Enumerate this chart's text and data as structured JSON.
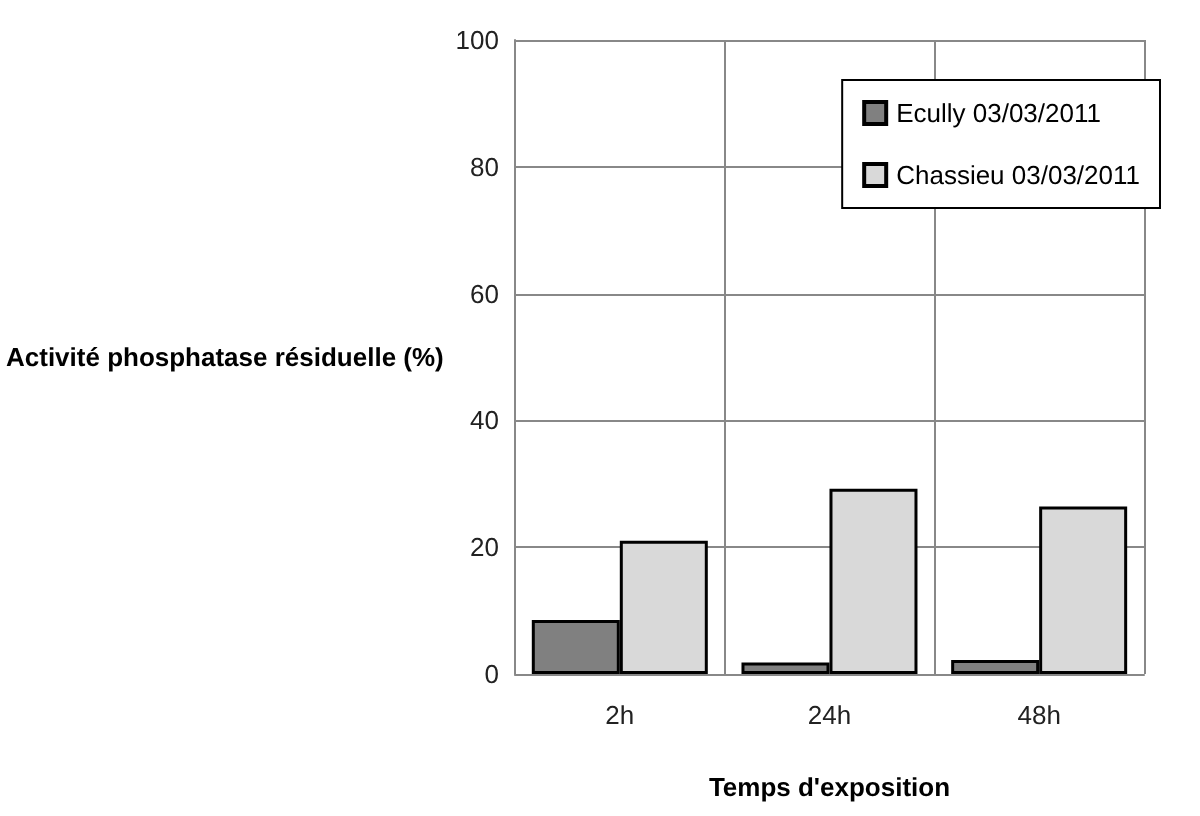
{
  "chart_data": {
    "type": "bar",
    "xlabel": "Temps d'exposition",
    "ylabel": "Activité phosphatase résiduelle (%)",
    "categories": [
      "2h",
      "24h",
      "48h"
    ],
    "series": [
      {
        "name": "Ecully 03/03/2011",
        "color": "#808080",
        "values": [
          8.5,
          1.8,
          2.2
        ]
      },
      {
        "name": "Chassieu 03/03/2011",
        "color": "#d9d9d9",
        "values": [
          21,
          29.2,
          26.4
        ]
      }
    ],
    "ylim": [
      0,
      100
    ],
    "yticks": [
      0,
      20,
      40,
      60,
      80,
      100
    ],
    "grid": true,
    "legend": "top right"
  }
}
